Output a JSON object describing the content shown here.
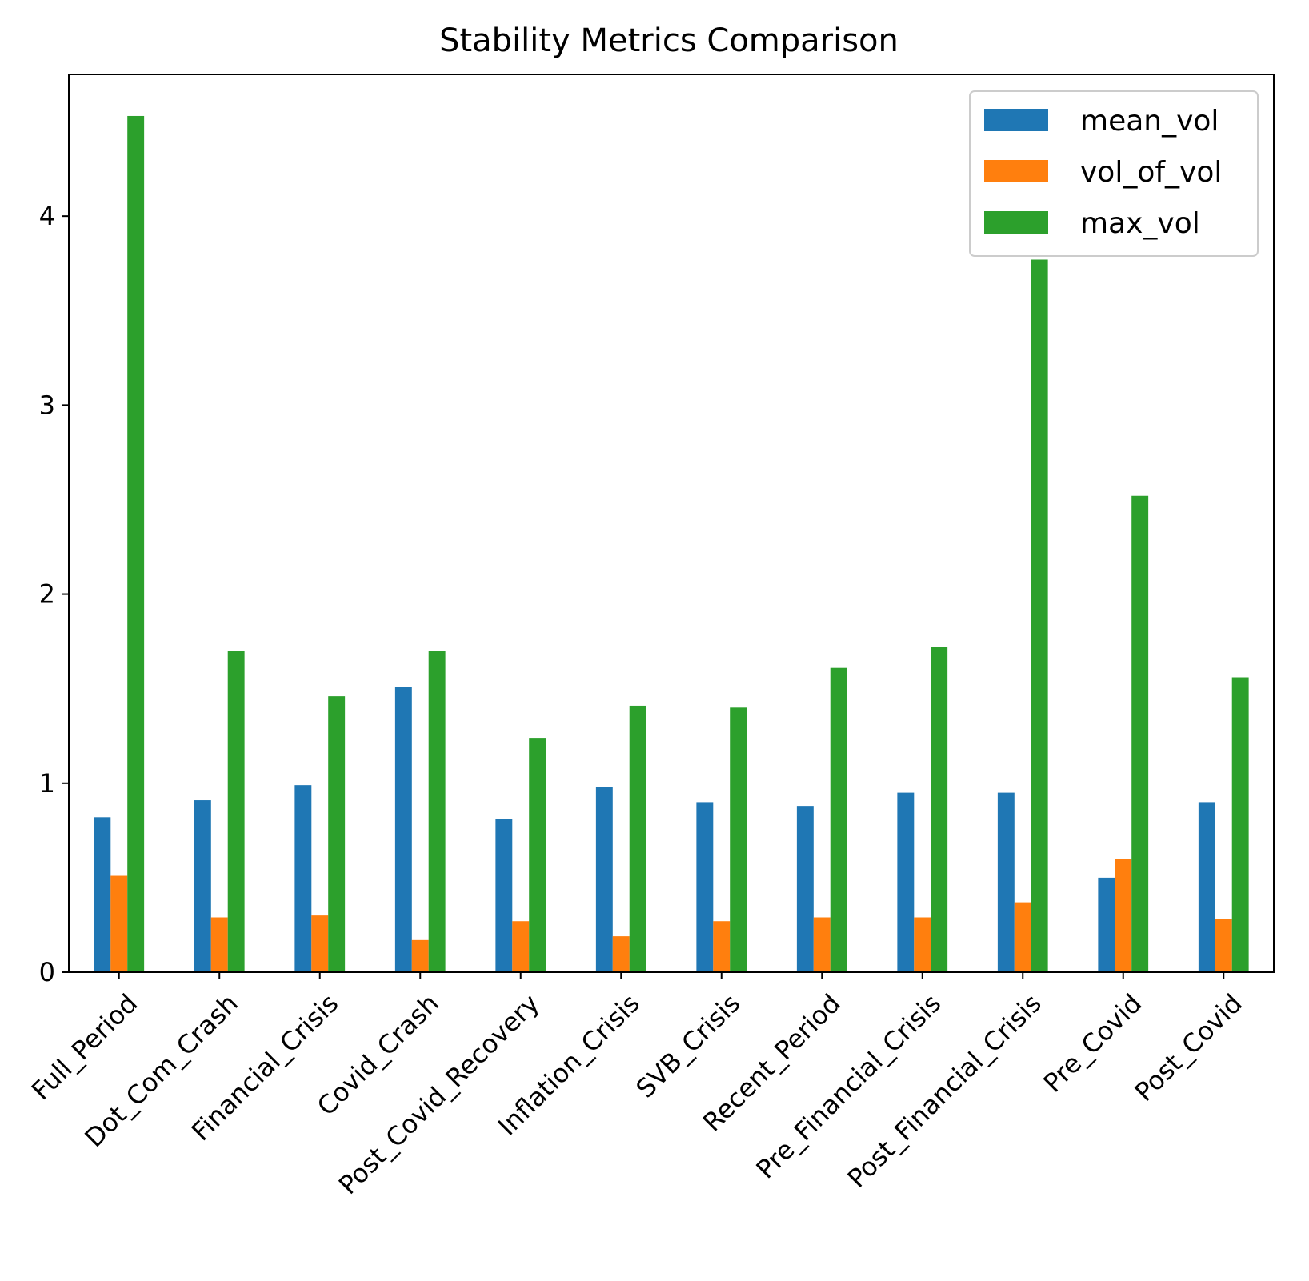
{
  "chart_data": {
    "type": "bar",
    "title": "Stability Metrics Comparison",
    "xlabel": "",
    "ylabel": "",
    "ylim": [
      0,
      4.75
    ],
    "yticks": [
      0,
      1,
      2,
      3,
      4
    ],
    "grid": false,
    "legend_placement": "top-right",
    "categories": [
      "Full_Period",
      "Dot_Com_Crash",
      "Financial_Crisis",
      "Covid_Crash",
      "Post_Covid_Recovery",
      "Inflation_Crisis",
      "SVB_Crisis",
      "Recent_Period",
      "Pre_Financial_Crisis",
      "Post_Financial_Crisis",
      "Pre_Covid",
      "Post_Covid"
    ],
    "series": [
      {
        "name": "mean_vol",
        "color": "#1f77b4",
        "values": [
          0.82,
          0.91,
          0.99,
          1.51,
          0.81,
          0.98,
          0.9,
          0.88,
          0.95,
          0.95,
          0.5,
          0.9
        ]
      },
      {
        "name": "vol_of_vol",
        "color": "#ff7f0e",
        "values": [
          0.51,
          0.29,
          0.3,
          0.17,
          0.27,
          0.19,
          0.27,
          0.29,
          0.29,
          0.37,
          0.6,
          0.28
        ]
      },
      {
        "name": "max_vol",
        "color": "#2ca02c",
        "values": [
          4.53,
          1.7,
          1.46,
          1.7,
          1.24,
          1.41,
          1.4,
          1.61,
          1.72,
          3.77,
          2.52,
          1.56
        ]
      }
    ]
  }
}
